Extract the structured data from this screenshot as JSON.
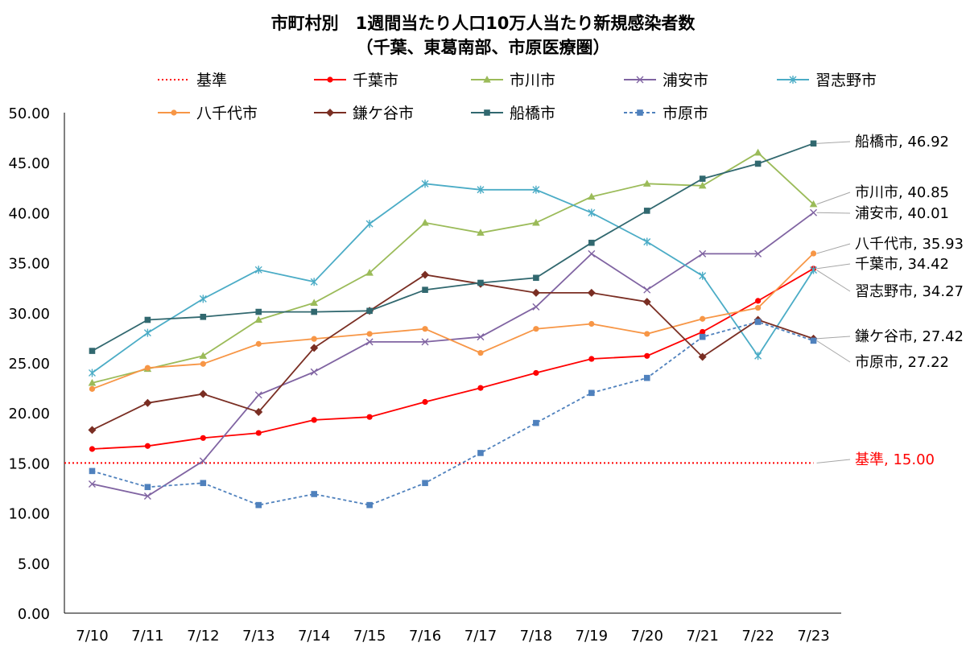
{
  "chart_data": {
    "type": "line",
    "title": "市町村別　1週間当たり人口10万人当たり新規感染者数",
    "subtitle": "（千葉、東葛南部、市原医療圏）",
    "xlabel": "",
    "ylabel": "",
    "ylim": [
      0,
      50
    ],
    "yticks": [
      "0.00",
      "5.00",
      "10.00",
      "15.00",
      "20.00",
      "25.00",
      "30.00",
      "35.00",
      "40.00",
      "45.00",
      "50.00"
    ],
    "categories": [
      "7/10",
      "7/11",
      "7/12",
      "7/13",
      "7/14",
      "7/15",
      "7/16",
      "7/17",
      "7/18",
      "7/19",
      "7/20",
      "7/21",
      "7/22",
      "7/23"
    ],
    "grid": false,
    "legend_position": "top",
    "series": [
      {
        "name": "基準",
        "color": "#ff0000",
        "style": "dotted",
        "marker": "none",
        "values": [
          15,
          15,
          15,
          15,
          15,
          15,
          15,
          15,
          15,
          15,
          15,
          15,
          15,
          15
        ],
        "end_label": "基準, 15.00"
      },
      {
        "name": "千葉市",
        "color": "#ff0000",
        "style": "solid",
        "marker": "circle",
        "values": [
          16.4,
          16.7,
          17.5,
          18.0,
          19.3,
          19.6,
          21.1,
          22.5,
          24.0,
          25.4,
          25.7,
          28.1,
          31.2,
          34.42
        ],
        "end_label": "千葉市, 34.42"
      },
      {
        "name": "市川市",
        "color": "#9bbb59",
        "style": "solid",
        "marker": "triangle",
        "values": [
          23.0,
          24.4,
          25.7,
          29.3,
          31.0,
          34.0,
          39.0,
          38.0,
          39.0,
          41.6,
          42.9,
          42.7,
          46.0,
          40.85
        ],
        "end_label": "市川市, 40.85"
      },
      {
        "name": "浦安市",
        "color": "#8064a2",
        "style": "solid",
        "marker": "x",
        "values": [
          12.9,
          11.7,
          15.2,
          21.8,
          24.1,
          27.1,
          27.1,
          27.6,
          30.6,
          35.9,
          32.3,
          35.9,
          35.9,
          40.01
        ],
        "end_label": "浦安市, 40.01"
      },
      {
        "name": "習志野市",
        "color": "#4bacc6",
        "style": "solid",
        "marker": "star",
        "values": [
          24.0,
          28.0,
          31.4,
          34.3,
          33.1,
          38.9,
          42.9,
          42.3,
          42.3,
          40.0,
          37.1,
          33.7,
          25.7,
          34.27
        ],
        "end_label": "習志野市, 34.27"
      },
      {
        "name": "八千代市",
        "color": "#f79646",
        "style": "solid",
        "marker": "circle",
        "values": [
          22.4,
          24.5,
          24.9,
          26.9,
          27.4,
          27.9,
          28.4,
          26.0,
          28.4,
          28.9,
          27.9,
          29.4,
          30.5,
          35.93
        ],
        "end_label": "八千代市, 35.93"
      },
      {
        "name": "鎌ケ谷市",
        "color": "#7a2e23",
        "style": "solid",
        "marker": "diamond",
        "values": [
          18.3,
          21.0,
          21.9,
          20.1,
          26.5,
          30.2,
          33.8,
          32.9,
          32.0,
          32.0,
          31.1,
          25.6,
          29.3,
          27.42
        ],
        "end_label": "鎌ケ谷市, 27.42"
      },
      {
        "name": "船橋市",
        "color": "#31686f",
        "style": "solid",
        "marker": "square",
        "values": [
          26.2,
          29.3,
          29.6,
          30.1,
          30.1,
          30.2,
          32.3,
          33.0,
          33.5,
          37.0,
          40.2,
          43.4,
          44.9,
          46.92
        ],
        "end_label": "船橋市, 46.92"
      },
      {
        "name": "市原市",
        "color": "#4f81bd",
        "style": "dashed",
        "marker": "square",
        "values": [
          14.2,
          12.6,
          13.0,
          10.8,
          11.9,
          10.8,
          13.0,
          16.0,
          19.0,
          22.0,
          23.5,
          27.6,
          29.1,
          27.22
        ],
        "end_label": "市原市, 27.22"
      }
    ]
  }
}
